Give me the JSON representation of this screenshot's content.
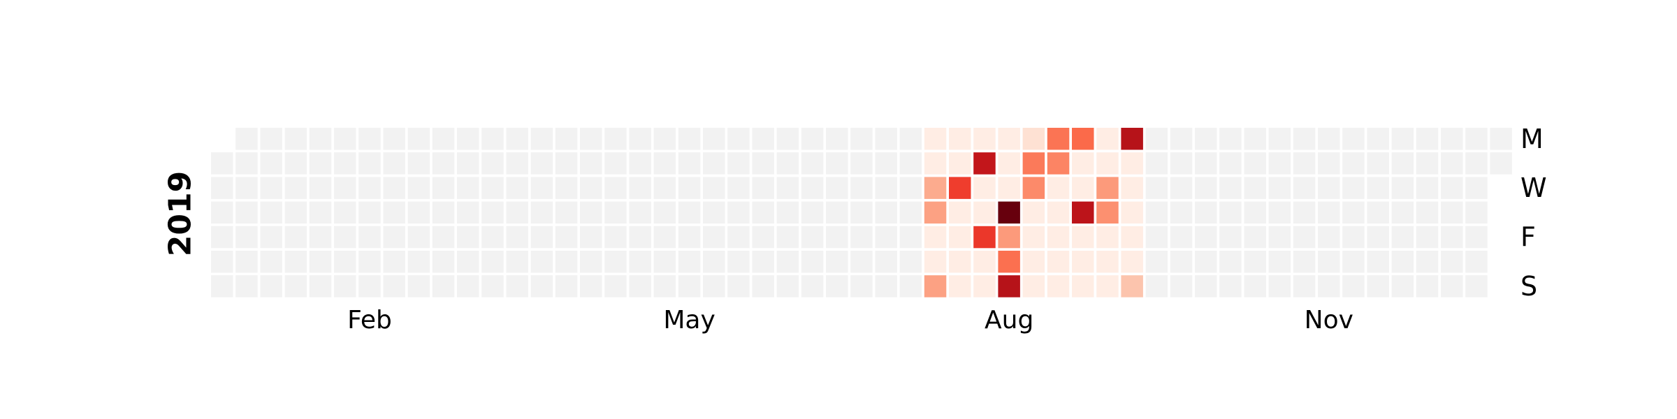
{
  "chart_data": {
    "type": "heatmap",
    "title": "",
    "year_label": "2019",
    "x_tick_labels": [
      "Feb",
      "May",
      "Aug",
      "Nov"
    ],
    "y_tick_labels": [
      "M",
      "W",
      "F",
      "S"
    ],
    "row_order": [
      "Mon",
      "Tue",
      "Wed",
      "Thu",
      "Fri",
      "Sat",
      "Sun"
    ],
    "week_start": "Monday",
    "year_start_weekday": "Tuesday",
    "colormap": "Reds",
    "empty_color": "#f2f2f2",
    "empty_weeks": {
      "before_first_active": 28,
      "after_last_active": 15
    },
    "note_scale": "relative intensity 0-1 (no colorbar shown)",
    "active_weeks": [
      {
        "Mon": 0.05,
        "Tue": 0.05,
        "Wed": 0.3,
        "Thu": 0.33,
        "Fri": 0.05,
        "Sat": 0.05,
        "Sun": 0.33
      },
      {
        "Mon": 0.05,
        "Tue": 0.05,
        "Wed": 0.62,
        "Thu": 0.05,
        "Fri": 0.05,
        "Sat": 0.05,
        "Sun": 0.05
      },
      {
        "Mon": 0.05,
        "Tue": 0.78,
        "Wed": 0.05,
        "Thu": 0.05,
        "Fri": 0.64,
        "Sat": 0.05,
        "Sun": 0.05
      },
      {
        "Mon": 0.05,
        "Tue": 0.05,
        "Wed": 0.05,
        "Thu": 1.0,
        "Fri": 0.35,
        "Sat": 0.48,
        "Sun": 0.82
      },
      {
        "Mon": 0.12,
        "Tue": 0.45,
        "Wed": 0.4,
        "Thu": 0.05,
        "Fri": 0.05,
        "Sat": 0.05,
        "Sun": 0.05
      },
      {
        "Mon": 0.47,
        "Tue": 0.42,
        "Wed": 0.05,
        "Thu": 0.05,
        "Fri": 0.05,
        "Sat": 0.05,
        "Sun": 0.05
      },
      {
        "Mon": 0.5,
        "Tue": 0.05,
        "Wed": 0.05,
        "Thu": 0.8,
        "Fri": 0.05,
        "Sat": 0.05,
        "Sun": 0.05
      },
      {
        "Mon": 0.05,
        "Tue": 0.05,
        "Wed": 0.35,
        "Thu": 0.38,
        "Fri": 0.05,
        "Sat": 0.05,
        "Sun": 0.05
      },
      {
        "Mon": 0.82,
        "Tue": 0.05,
        "Wed": 0.05,
        "Thu": 0.05,
        "Fri": 0.05,
        "Sat": 0.05,
        "Sun": 0.22
      }
    ]
  }
}
